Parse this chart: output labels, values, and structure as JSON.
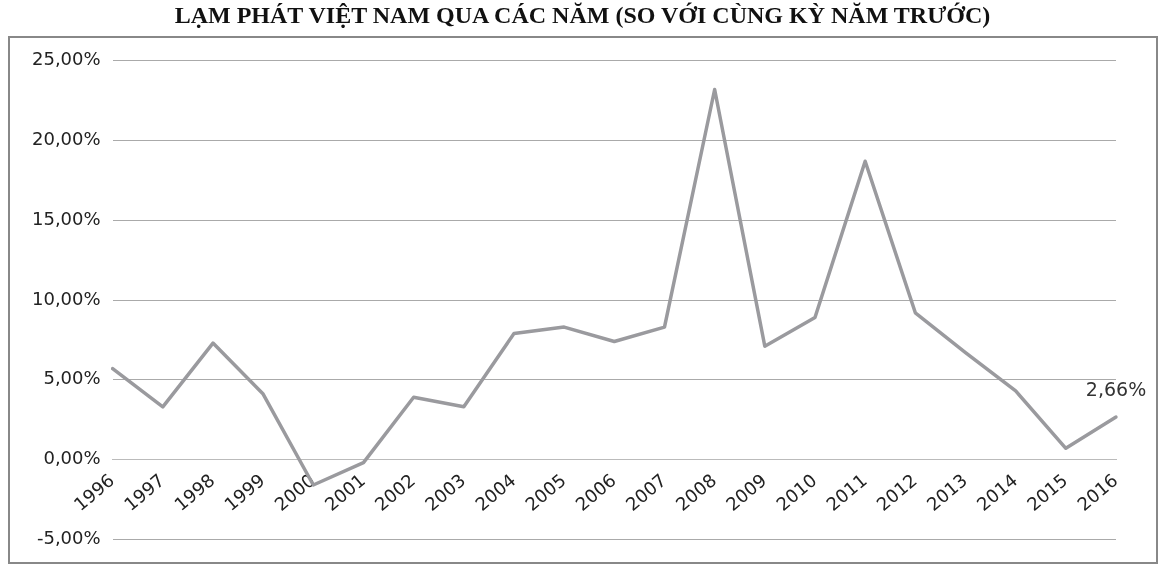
{
  "chart_data": {
    "type": "line",
    "title": "LẠM PHÁT VIỆT NAM QUA CÁC NĂM (SO VỚI CÙNG KỲ NĂM TRƯỚC)",
    "categories": [
      "1996",
      "1997",
      "1998",
      "1999",
      "2000",
      "2001",
      "2002",
      "2003",
      "2004",
      "2005",
      "2006",
      "2007",
      "2008",
      "2009",
      "2010",
      "2011",
      "2012",
      "2013",
      "2014",
      "2015",
      "2016"
    ],
    "series": [
      {
        "color": "#9a9a9e",
        "values": [
          5.7,
          3.3,
          7.3,
          4.1,
          -1.6,
          -0.2,
          3.9,
          3.3,
          7.9,
          8.3,
          7.4,
          8.3,
          23.2,
          7.1,
          8.9,
          18.7,
          9.2,
          6.7,
          4.3,
          0.7,
          2.66
        ],
        "value_labels": [
          null,
          null,
          null,
          null,
          null,
          null,
          null,
          null,
          null,
          null,
          null,
          null,
          null,
          null,
          null,
          null,
          null,
          null,
          null,
          null,
          "2,66%"
        ]
      }
    ],
    "ylim": [
      -5,
      25
    ],
    "yticks": [
      {
        "value": -5,
        "label": "-5,00%"
      },
      {
        "value": 0,
        "label": "0,00%"
      },
      {
        "value": 5,
        "label": "5,00%"
      },
      {
        "value": 10,
        "label": "10,00%"
      },
      {
        "value": 15,
        "label": "15,00%"
      },
      {
        "value": 20,
        "label": "20,00%"
      },
      {
        "value": 25,
        "label": "25,00%"
      }
    ],
    "grid": "y",
    "legend": false,
    "marker": "none",
    "line_style": "solid"
  }
}
